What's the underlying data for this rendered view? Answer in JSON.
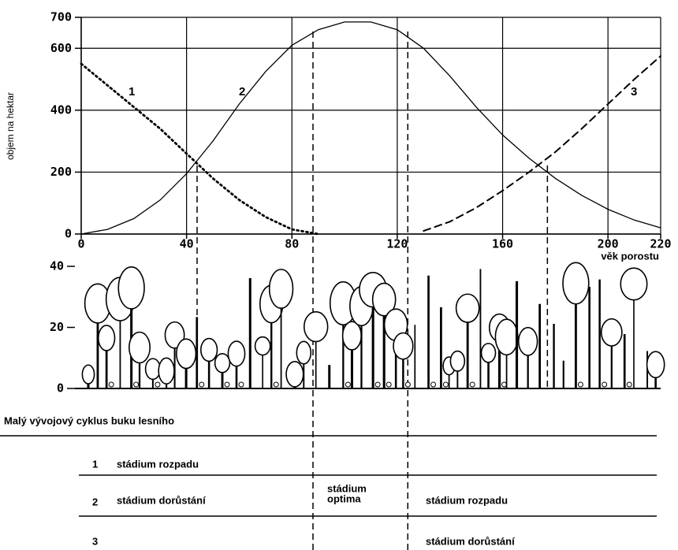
{
  "chart_data": [
    {
      "type": "line",
      "ylabel": "objem na hektar",
      "xlabel": "věk porostu",
      "x": [
        0,
        10,
        20,
        30,
        40,
        50,
        60,
        70,
        80,
        90,
        100,
        110,
        120,
        130,
        140,
        150,
        160,
        170,
        180,
        190,
        200,
        210,
        220
      ],
      "series": [
        {
          "name": "1",
          "color": "#000000",
          "style": "dotted",
          "values": [
            550,
            480,
            410,
            340,
            260,
            180,
            110,
            55,
            15,
            0,
            null,
            null,
            null,
            null,
            null,
            null,
            null,
            null,
            null,
            null,
            null,
            null,
            null
          ]
        },
        {
          "name": "2",
          "color": "#000000",
          "style": "solid",
          "values": [
            0,
            15,
            50,
            110,
            195,
            300,
            420,
            525,
            610,
            660,
            685,
            685,
            660,
            600,
            510,
            410,
            320,
            245,
            180,
            125,
            80,
            45,
            20
          ]
        },
        {
          "name": "3",
          "color": "#000000",
          "style": "dashed",
          "values": [
            null,
            null,
            null,
            null,
            null,
            null,
            null,
            null,
            null,
            null,
            null,
            null,
            null,
            10,
            40,
            85,
            140,
            200,
            265,
            340,
            420,
            500,
            575
          ]
        }
      ],
      "boundaries": [
        44,
        88,
        124,
        177
      ],
      "xlim": [
        0,
        220
      ],
      "xticks": [
        0,
        40,
        80,
        120,
        160,
        200,
        220
      ],
      "ylim": [
        0,
        700
      ],
      "yticks": [
        0,
        200,
        400,
        600,
        700
      ],
      "grid": true
    },
    {
      "type": "profile",
      "ylim": [
        0,
        40
      ],
      "yticks": [
        0,
        20,
        40
      ]
    }
  ],
  "table": {
    "title": "Malý vývojový cyklus buku lesního",
    "rows": [
      {
        "number": "1",
        "left": "stádium rozpadu"
      },
      {
        "number": "2",
        "left": "stádium dorůstání",
        "middle": [
          "stádium",
          "optima"
        ],
        "right": "stádium rozpadu"
      },
      {
        "number": "3",
        "right": "stádium dorůstání"
      }
    ]
  }
}
